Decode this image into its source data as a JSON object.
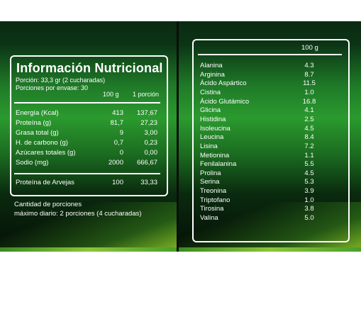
{
  "left_panel": {
    "title": "Información Nutricional",
    "porcion": "Porción: 33,3 gr (2 cucharadas)",
    "porciones_envase": "Porciones por envase: 30",
    "col_100g": "100 g",
    "col_porcion": "1 porción",
    "rows": [
      {
        "label": "Energía (Kcal)",
        "v100": "413",
        "vpor": "137,67"
      },
      {
        "label": "Proteína (g)",
        "v100": "81,7",
        "vpor": "27,23"
      },
      {
        "label": "Grasa total (g)",
        "v100": "9",
        "vpor": "3,00"
      },
      {
        "label": "H. de carbono (g)",
        "v100": "0,7",
        "vpor": "0,23"
      },
      {
        "label": "Azúcares totales (g)",
        "v100": "0",
        "vpor": "0,00"
      },
      {
        "label": "Sodio (mg)",
        "v100": "2000",
        "vpor": "666,67"
      }
    ],
    "extra_row": {
      "label": "Proteína de Arvejas",
      "v100": "100",
      "vpor": "33,33"
    },
    "note_line1": "Cantidad de porciones",
    "note_line2": "máximo diario: 2 porciones (4 cucharadas)"
  },
  "right_panel": {
    "col_header": "100 g",
    "amino_acids": [
      {
        "name": "Alanina",
        "value": "4.3"
      },
      {
        "name": "Arginina",
        "value": "8.7"
      },
      {
        "name": "Ácido Aspártico",
        "value": "11.5"
      },
      {
        "name": "Cistina",
        "value": "1.0"
      },
      {
        "name": "Ácido Glutámico",
        "value": "16.8"
      },
      {
        "name": "Glicina",
        "value": "4.1"
      },
      {
        "name": "Histidina",
        "value": "2.5"
      },
      {
        "name": "Isoleucina",
        "value": "4.5"
      },
      {
        "name": "Leucina",
        "value": "8.4"
      },
      {
        "name": "Lisina",
        "value": "7.2"
      },
      {
        "name": "Metionina",
        "value": "1.1"
      },
      {
        "name": "Fenilalanina",
        "value": "5.5"
      },
      {
        "name": "Prolina",
        "value": "4.5"
      },
      {
        "name": "Serina",
        "value": "5.3"
      },
      {
        "name": "Treonina",
        "value": "3.9"
      },
      {
        "name": "Triptofano",
        "value": "1.0"
      },
      {
        "name": "Tirosina",
        "value": "3.8"
      },
      {
        "name": "Valina",
        "value": "5.0"
      }
    ]
  },
  "colors": {
    "panel_green": "#2b9a2e",
    "text": "#ffffff",
    "accent_lime": "#8cc43a"
  }
}
